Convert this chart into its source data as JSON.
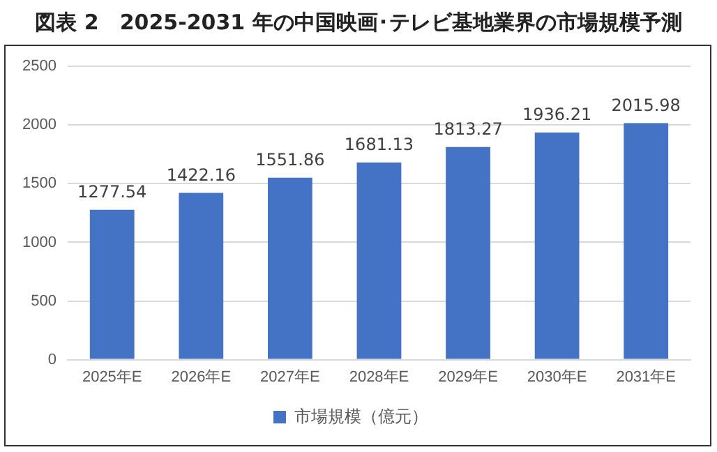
{
  "chart_data": {
    "type": "bar",
    "title": "図表 2　2025-2031 年の中国映画･テレビ基地業界の市場規模予測",
    "categories": [
      "2025年E",
      "2026年E",
      "2027年E",
      "2028年E",
      "2029年E",
      "2030年E",
      "2031年E"
    ],
    "series": [
      {
        "name": "市場規模（億元）",
        "color": "#4472c4",
        "values": [
          1277.54,
          1422.16,
          1551.86,
          1681.13,
          1813.27,
          1936.21,
          2015.98
        ]
      }
    ],
    "ylim": [
      0,
      2500
    ],
    "yticks": [
      0,
      500,
      1000,
      1500,
      2000,
      2500
    ],
    "grid": "y",
    "legend": "bottom",
    "data_labels": true
  }
}
